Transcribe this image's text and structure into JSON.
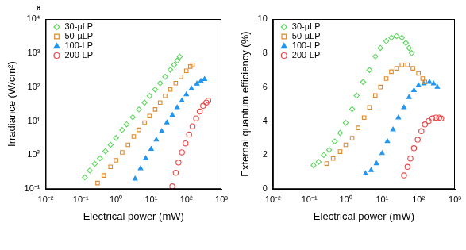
{
  "chart_data": [
    {
      "type": "scatter",
      "annotation": "a",
      "log": true,
      "grid": false,
      "legend": "upper left",
      "x_label": "Electrical power (mW)",
      "y_label": "Irradiance (W/cm²)",
      "xlim": [
        0.01,
        1000
      ],
      "xticks": [
        {
          "value": 0.01,
          "label": "10⁻²"
        },
        {
          "value": 0.1,
          "label": "10⁻¹"
        },
        {
          "value": 1,
          "label": "10⁰"
        },
        {
          "value": 10,
          "label": "10¹"
        },
        {
          "value": 100,
          "label": "10²"
        },
        {
          "value": 1000,
          "label": "10³"
        }
      ],
      "ylim": [
        0.1,
        10000
      ],
      "yticks": [
        {
          "value": 0.1,
          "label": "10⁻¹"
        },
        {
          "value": 1,
          "label": "10⁰"
        },
        {
          "value": 10,
          "label": "10¹"
        },
        {
          "value": 100,
          "label": "10²"
        },
        {
          "value": 1000,
          "label": "10³"
        },
        {
          "value": 10000,
          "label": "10⁴"
        }
      ],
      "series": [
        {
          "name": "30-µLP",
          "color": "#5ed65e",
          "marker": "open_diamond",
          "x": [
            0.13,
            0.18,
            0.25,
            0.35,
            0.5,
            0.7,
            1,
            1.5,
            2,
            3,
            4.5,
            6.5,
            9,
            13,
            18,
            25,
            35,
            45,
            55,
            65
          ],
          "values": [
            0.22,
            0.35,
            0.55,
            0.8,
            1.3,
            2,
            3.2,
            5.5,
            8,
            13,
            22,
            35,
            55,
            85,
            130,
            200,
            320,
            450,
            600,
            780
          ]
        },
        {
          "name": "50-µLP",
          "color": "#e0892a",
          "marker": "open_square",
          "x": [
            0.3,
            0.45,
            0.7,
            1,
            1.5,
            2.2,
            3.2,
            4.5,
            6.5,
            9,
            13,
            18,
            25,
            35,
            50,
            70,
            100,
            130,
            150
          ],
          "values": [
            0.15,
            0.25,
            0.45,
            0.7,
            1.2,
            2,
            3.5,
            5.5,
            9,
            14,
            22,
            35,
            55,
            85,
            130,
            200,
            300,
            400,
            450
          ]
        },
        {
          "name": "100-LP",
          "color": "#2196f0",
          "marker": "triangle",
          "x": [
            3.5,
            5,
            7,
            10,
            14,
            20,
            28,
            40,
            55,
            75,
            100,
            140,
            200,
            260,
            330
          ],
          "values": [
            0.2,
            0.4,
            0.8,
            1.5,
            2.8,
            5,
            9,
            15,
            25,
            40,
            60,
            90,
            125,
            150,
            170
          ]
        },
        {
          "name": "200-LP",
          "color": "#e84a4a",
          "marker": "open_circle",
          "x": [
            40,
            50,
            60,
            75,
            95,
            120,
            150,
            190,
            240,
            300,
            370,
            420
          ],
          "values": [
            0.12,
            0.3,
            0.6,
            1.2,
            2.2,
            4,
            7,
            12,
            19,
            28,
            35,
            40
          ]
        }
      ]
    },
    {
      "type": "scatter",
      "log": "x",
      "grid": false,
      "legend": "upper left",
      "x_label": "Electrical power (mW)",
      "y_label": "External quantum efficiency (%)",
      "xlim": [
        0.01,
        1000
      ],
      "xticks": [
        {
          "value": 0.01,
          "label": "10⁻²"
        },
        {
          "value": 0.1,
          "label": "10⁻¹"
        },
        {
          "value": 1,
          "label": "10⁰"
        },
        {
          "value": 10,
          "label": "10¹"
        },
        {
          "value": 100,
          "label": "10²"
        },
        {
          "value": 1000,
          "label": "10³"
        }
      ],
      "ylim": [
        0,
        10
      ],
      "yticks": [
        0,
        2,
        4,
        6,
        8,
        10
      ],
      "series": [
        {
          "name": "30-µLP",
          "color": "#5ed65e",
          "marker": "open_diamond",
          "x": [
            0.13,
            0.18,
            0.25,
            0.35,
            0.5,
            0.7,
            1,
            1.5,
            2,
            3,
            4.5,
            6.5,
            9,
            13,
            18,
            25,
            35,
            45,
            55,
            65
          ],
          "values": [
            1.4,
            1.6,
            2,
            2.3,
            2.8,
            3.3,
            3.9,
            4.7,
            5.5,
            6.3,
            7,
            7.8,
            8.3,
            8.7,
            8.9,
            9.0,
            8.9,
            8.6,
            8.3,
            8.0
          ]
        },
        {
          "name": "50-µLP",
          "color": "#e0892a",
          "marker": "open_square",
          "x": [
            0.3,
            0.45,
            0.7,
            1,
            1.5,
            2.2,
            3.2,
            4.5,
            6.5,
            9,
            13,
            18,
            25,
            35,
            50,
            70,
            100,
            130,
            150
          ],
          "values": [
            1.5,
            1.8,
            2.2,
            2.6,
            3,
            3.6,
            4.2,
            4.8,
            5.5,
            6,
            6.5,
            6.9,
            7.1,
            7.3,
            7.3,
            7.1,
            6.8,
            6.5,
            6.3
          ]
        },
        {
          "name": "100-LP",
          "color": "#2196f0",
          "marker": "triangle",
          "x": [
            3.5,
            5,
            7,
            10,
            14,
            20,
            28,
            40,
            55,
            75,
            100,
            140,
            200,
            260,
            330
          ],
          "values": [
            0.9,
            1.1,
            1.5,
            2.1,
            2.8,
            3.5,
            4.2,
            4.8,
            5.4,
            5.8,
            6.1,
            6.2,
            6.3,
            6.2,
            6.0
          ]
        },
        {
          "name": "200-LP",
          "color": "#e84a4a",
          "marker": "open_circle",
          "x": [
            40,
            50,
            60,
            75,
            95,
            120,
            150,
            190,
            240,
            300,
            370,
            420
          ],
          "values": [
            0.8,
            1.3,
            1.8,
            2.4,
            2.9,
            3.4,
            3.8,
            4.0,
            4.15,
            4.2,
            4.2,
            4.15
          ]
        }
      ]
    }
  ]
}
